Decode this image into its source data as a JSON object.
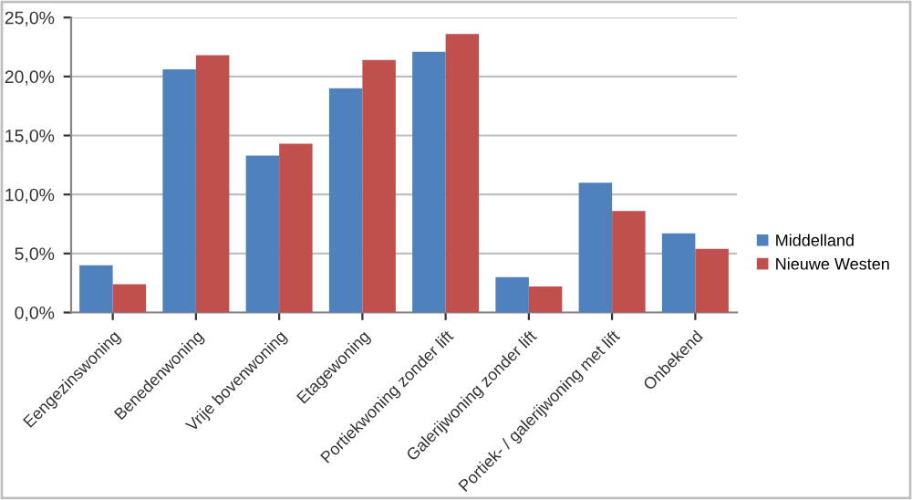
{
  "chart_data": {
    "type": "bar",
    "categories": [
      "Eengezinswoning",
      "Benedenwoning",
      "Vrije bovenwoning",
      "Etagewoning",
      "Portiekwoning zonder lift",
      "Galerijwoning zonder lift",
      "Portiek- / galerijwoning met lift",
      "Onbekend"
    ],
    "series": [
      {
        "name": "Middelland",
        "color": "#4f81bd",
        "values": [
          4.0,
          20.6,
          13.3,
          19.0,
          22.1,
          3.0,
          11.0,
          6.7
        ]
      },
      {
        "name": "Nieuwe Westen",
        "color": "#c0504d",
        "values": [
          2.4,
          21.8,
          14.3,
          21.4,
          23.6,
          2.2,
          8.6,
          5.4
        ]
      }
    ],
    "ylim": [
      0,
      25
    ],
    "yticks": [
      {
        "value": 0,
        "label": "0,0%"
      },
      {
        "value": 5,
        "label": "5,0%"
      },
      {
        "value": 10,
        "label": "10,0%"
      },
      {
        "value": 15,
        "label": "15,0%"
      },
      {
        "value": 20,
        "label": "20,0%"
      },
      {
        "value": 25,
        "label": "25,0%"
      }
    ],
    "grid": "y",
    "legend": "right"
  }
}
